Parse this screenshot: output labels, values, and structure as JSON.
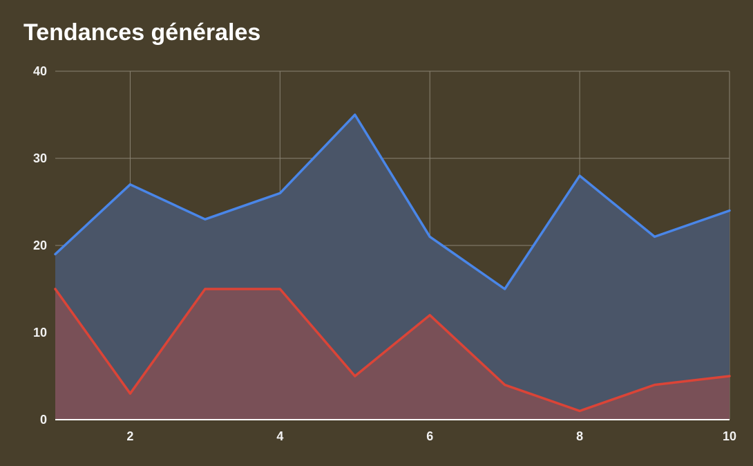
{
  "chart_data": {
    "type": "area",
    "title": "Tendances générales",
    "xlabel": "",
    "ylabel": "",
    "x": [
      1,
      2,
      3,
      4,
      5,
      6,
      7,
      8,
      9,
      10
    ],
    "xlim": [
      1,
      10
    ],
    "ylim": [
      0,
      40
    ],
    "x_ticks": [
      2,
      4,
      6,
      8,
      10
    ],
    "y_ticks": [
      0,
      10,
      20,
      30,
      40
    ],
    "x_gridlines": [
      2,
      4,
      6,
      8,
      10
    ],
    "grid": true,
    "legend": "none",
    "series": [
      {
        "color": "#4a86e8",
        "fill": "#4a5568",
        "values": [
          19,
          27,
          23,
          26,
          35,
          21,
          15,
          28,
          21,
          24
        ]
      },
      {
        "color": "#db4437",
        "fill": "#795057",
        "values": [
          15,
          3,
          15,
          15,
          5,
          12,
          4,
          1,
          4,
          5
        ]
      }
    ],
    "colors": {
      "background": "#483f2b",
      "grid": "#8a8373",
      "axis": "#ffffff",
      "text": "#f2f2f2"
    }
  }
}
